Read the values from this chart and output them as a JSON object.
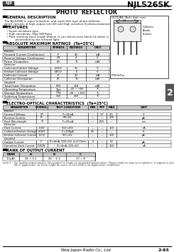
{
  "title": "NJL5265K",
  "subtitle": "PHOTO  REFLECTOR",
  "logo_text": "NJR",
  "page_label": "2",
  "page_num": "2-93",
  "company": "New Japan Radio Co., Ltd.",
  "section_general": "GENERAL DESCRIPTION",
  "general_text1": "The NJL5265K is super miniature, and super thin type photo reflector,",
  "general_text2": "which consists of high output red LED and high sensitive Si photo-transistor.",
  "section_features": "FEATURES",
  "features": [
    "Super miniature type",
    "High sensitivity, High S/N Ratio",
    "Peak emitting wave length 660nm. It can detect even black ink which is",
    "     penetrated by the infrared light."
  ],
  "section_abs": "ABSOLUTE MAXIMUM RATINGS",
  "abs_tc": "(Ta=25°C)",
  "abs_headers": [
    "PARAMETER",
    "SYMBOL",
    "RATINGS",
    "UNIT"
  ],
  "abs_groups": [
    {
      "group": "Emitter",
      "rows": [
        [
          "Forward Current (Continuous)",
          "IF",
          "30",
          "mA"
        ],
        [
          "Reverse Voltage (Continuous)",
          "VR",
          "4",
          "V"
        ],
        [
          "Power Dissipation",
          "PD",
          "75",
          "mW"
        ]
      ]
    },
    {
      "group": "Detector",
      "rows": [
        [
          "Collector-Emitter Voltage",
          "VCEO",
          "30",
          "V"
        ],
        [
          "Emitter-Collector Voltage",
          "VECO",
          "6",
          "V"
        ],
        [
          "Collector Current",
          "IC",
          "20",
          "mA"
        ],
        [
          "Collector Dissipation",
          "PC",
          "75",
          "mW"
        ]
      ]
    },
    {
      "group": "Coupled",
      "rows": [
        [
          "Total Power Dissipation",
          "PTO",
          "160",
          "mW"
        ],
        [
          "Operating Temperature",
          "Topr",
          "-20 ~ +85",
          "°C"
        ],
        [
          "Storage Temperature",
          "Tstg",
          "-30 ~ +100",
          "°C"
        ],
        [
          "Soldering Temperature",
          "Tsol",
          "260",
          "°C"
        ]
      ]
    }
  ],
  "abs_note": "(3Sec, 1.5mm from body)",
  "section_eo": "ELECTRO-OPTICAL CHARACTERISTICS",
  "eo_tc": "(Ta=25°C)",
  "eo_headers": [
    "PARAMETER",
    "SYMBOL",
    "TEST CONDITION",
    "MIN",
    "TYP",
    "MAX",
    "UNIT"
  ],
  "eo_groups": [
    {
      "group": "Emitter",
      "rows": [
        [
          "Forward Voltage",
          "VF",
          "IF=10mA",
          "—",
          "1.7",
          "2.5",
          "V"
        ],
        [
          "Reverse Current",
          "IR",
          "VR=5V",
          "—",
          "—",
          "100",
          "μA"
        ],
        [
          "Peak Wavelength",
          "λp",
          "IF=20mA",
          "—",
          "660",
          "—",
          "nm"
        ]
      ]
    },
    {
      "group": "Detector",
      "rows": [
        [
          "Dark Current",
          "ICEO",
          "VCE=20V",
          "—",
          "—",
          "100",
          "nA"
        ],
        [
          "Collector-Emitter Voltage",
          "VCEO",
          "IC=100μA",
          "20",
          "—",
          "—",
          "V"
        ],
        [
          "Emitter-Collector Current",
          "IECO",
          "VEC=5V",
          "—",
          "—",
          "100",
          "μA"
        ]
      ]
    },
    {
      "group": "Coupled",
      "rows": [
        [
          "Output Current",
          "IC",
          "IF=4mA, VCE=5V, d=0.7mm",
          "5",
          "—",
          "50",
          "μA"
        ],
        [
          "Operation Dark Current",
          "ICEON",
          "IF=4mA, VCE=5V",
          "—",
          "—",
          "100",
          "nA"
        ]
      ]
    }
  ],
  "section_rank": "RANK OF OUTPUT CURRENT",
  "rank_headers": [
    "RANK",
    "A",
    "B",
    "C"
  ],
  "rank_row_label": "IC(μA)",
  "rank_row_vals": [
    "26 ~ 2.1",
    "26 ~ 1.1",
    "17 ~ 8"
  ],
  "note_text1": "note 1 :  For quality improvement, this product is made on upgraded specification. Please make an inquiry in advance, it regard to desired long",
  "note_text2": "              life in application, as there might be cases of restrictions for application conditions.",
  "outline_title": "OUTLINE (Ref.) Unit: mm",
  "pin_labels": [
    "Collector",
    "Anode",
    "Emitter"
  ],
  "bg_color": "#ffffff",
  "text_color": "#000000"
}
